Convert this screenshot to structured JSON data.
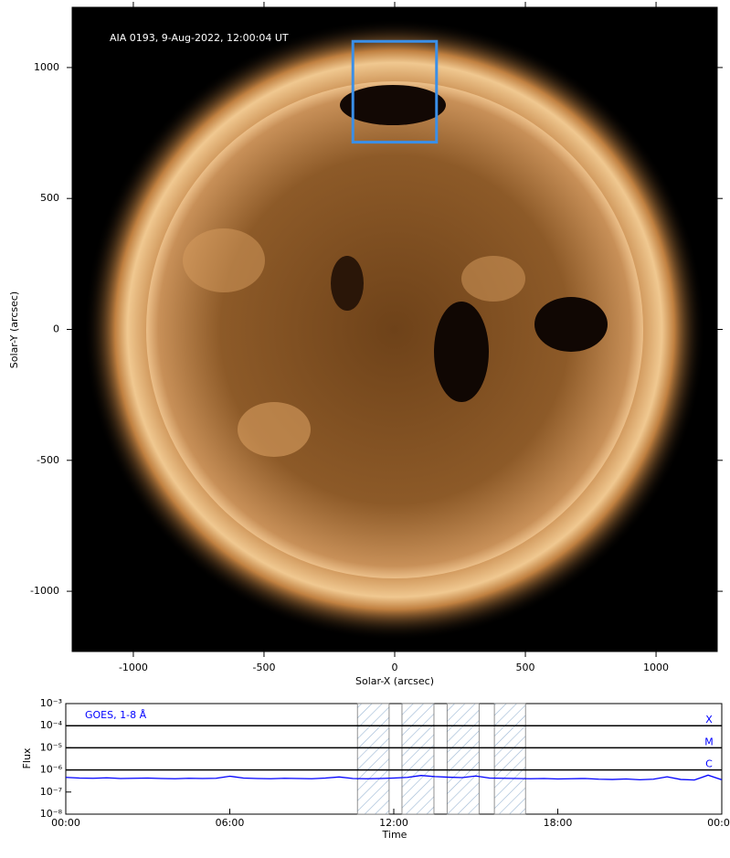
{
  "chart_data": [
    {
      "type": "image",
      "annotation": "AIA 0193, 9-Aug-2022, 12:00:04 UT",
      "xlabel": "Solar-X (arcsec)",
      "ylabel": "Solar-Y (arcsec)",
      "xlim": [
        -1234,
        1234
      ],
      "ylim": [
        -1230,
        1230
      ],
      "xticks": [
        -1000,
        -500,
        0,
        500,
        1000
      ],
      "yticks": [
        -1000,
        -500,
        0,
        500,
        1000
      ],
      "box": {
        "color": "#3a8fe8",
        "x": [
          -160,
          160
        ],
        "y": [
          715,
          1100
        ]
      }
    },
    {
      "type": "line",
      "xlabel": "Time",
      "ylabel": "Flux",
      "log_scale": true,
      "xlim": [
        0,
        24
      ],
      "ylim": [
        1e-08,
        0.001
      ],
      "xticks": [
        {
          "value": 0,
          "label": "00:00"
        },
        {
          "value": 6,
          "label": "06:00"
        },
        {
          "value": 12,
          "label": "12:00"
        },
        {
          "value": 18,
          "label": "18:00"
        },
        {
          "value": 24,
          "label": "00:00"
        }
      ],
      "yticks": [
        {
          "value": 1e-08,
          "label": "10⁻⁸"
        },
        {
          "value": 1e-07,
          "label": "10⁻⁷"
        },
        {
          "value": 1e-06,
          "label": "10⁻⁶"
        },
        {
          "value": 1e-05,
          "label": "10⁻⁵"
        },
        {
          "value": 0.0001,
          "label": "10⁻⁴"
        },
        {
          "value": 0.001,
          "label": "10⁻³"
        }
      ],
      "thresholds": [
        {
          "label": "X",
          "value": 0.0001
        },
        {
          "label": "M",
          "value": 1e-05
        },
        {
          "label": "C",
          "value": 1e-06
        }
      ],
      "threshold_label_color": "#0000ff",
      "intervals": [
        [
          10.67,
          11.83
        ],
        [
          12.3,
          13.47
        ],
        [
          13.95,
          15.12
        ],
        [
          15.68,
          16.82
        ]
      ],
      "x": [
        0,
        0.5,
        1,
        1.5,
        2,
        2.5,
        3,
        3.5,
        4,
        4.5,
        5,
        5.5,
        6,
        6.5,
        7,
        7.5,
        8,
        8.5,
        9,
        9.5,
        10,
        10.5,
        11,
        11.5,
        12,
        12.5,
        13,
        13.5,
        14,
        14.5,
        15,
        15.5,
        16,
        16.5,
        17,
        17.5,
        18,
        18.5,
        19,
        19.5,
        20,
        20.5,
        21,
        21.5,
        22,
        22.5,
        23,
        23.5,
        24
      ],
      "series": [
        {
          "name": "GOES, 1-8 Å",
          "color": "#0000ff",
          "values": [
            4.6e-07,
            4.3e-07,
            4.2e-07,
            4.4e-07,
            4.1e-07,
            4.2e-07,
            4.3e-07,
            4.1e-07,
            4e-07,
            4.2e-07,
            4.1e-07,
            4.2e-07,
            5.2e-07,
            4.3e-07,
            4.1e-07,
            4e-07,
            4.2e-07,
            4.1e-07,
            4e-07,
            4.3e-07,
            4.8e-07,
            4.1e-07,
            4e-07,
            4.1e-07,
            4.3e-07,
            4.6e-07,
            5.6e-07,
            5e-07,
            4.7e-07,
            4.5e-07,
            5.3e-07,
            4.3e-07,
            4.2e-07,
            4.1e-07,
            4e-07,
            4.1e-07,
            3.9e-07,
            4e-07,
            4.1e-07,
            3.8e-07,
            3.7e-07,
            3.9e-07,
            3.6e-07,
            3.8e-07,
            4.9e-07,
            3.7e-07,
            3.5e-07,
            5.8e-07,
            3.6e-07
          ]
        }
      ]
    }
  ]
}
